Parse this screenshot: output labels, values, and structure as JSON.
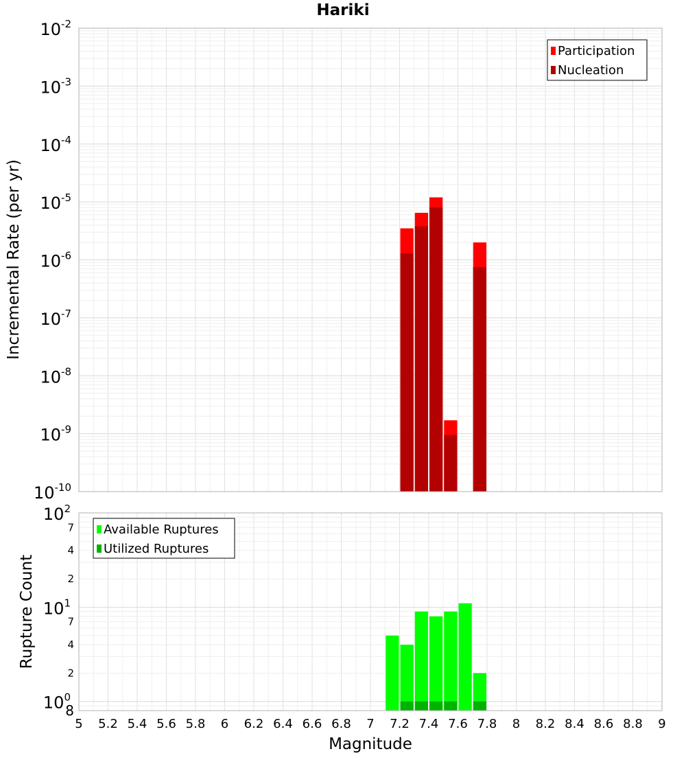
{
  "title": "Hariki",
  "chart_data": [
    {
      "type": "bar",
      "title": "Hariki",
      "xlabel": "Magnitude",
      "ylabel": "Incremental Rate (per yr)",
      "yscale": "log",
      "xlim": [
        5,
        9
      ],
      "ylim": [
        1e-10,
        0.01
      ],
      "x_ticks": [
        "5",
        "5.2",
        "5.4",
        "5.6",
        "5.8",
        "6",
        "6.2",
        "6.4",
        "6.6",
        "6.8",
        "7",
        "7.2",
        "7.4",
        "7.6",
        "7.8",
        "8",
        "8.2",
        "8.4",
        "8.6",
        "8.8",
        "9"
      ],
      "y_tick_exponents": [
        "-2",
        "-3",
        "-4",
        "-5",
        "-6",
        "-7",
        "-8",
        "-9",
        "-10"
      ],
      "y_tick_base": "10",
      "grid": true,
      "legend_position": "top-right",
      "bin_width": 0.1,
      "series": [
        {
          "name": "Participation",
          "color": "#ff0000",
          "x": [
            7.25,
            7.35,
            7.45,
            7.55,
            7.75
          ],
          "values": [
            3.5e-06,
            6.5e-06,
            1.2e-05,
            1.7e-09,
            2e-06
          ]
        },
        {
          "name": "Nucleation",
          "color": "#b30000",
          "x": [
            7.25,
            7.35,
            7.45,
            7.55,
            7.75
          ],
          "values": [
            1.3e-06,
            3.8e-06,
            8e-06,
            9.5e-10,
            7.5e-07
          ]
        }
      ]
    },
    {
      "type": "bar",
      "xlabel": "Magnitude",
      "ylabel": "Rupture Count",
      "yscale": "log",
      "xlim": [
        5,
        9
      ],
      "ylim": [
        0.8,
        100
      ],
      "y_major_ticks": [
        {
          "value": 100,
          "base": "10",
          "exp": "2"
        },
        {
          "value": 10,
          "base": "10",
          "exp": "1"
        },
        {
          "value": 1,
          "base": "10",
          "exp": "0"
        }
      ],
      "y_minor_ticks": [
        {
          "value": 70,
          "label": "7"
        },
        {
          "value": 40,
          "label": "4"
        },
        {
          "value": 20,
          "label": "2"
        },
        {
          "value": 7,
          "label": "7"
        },
        {
          "value": 4,
          "label": "4"
        },
        {
          "value": 2,
          "label": "2"
        },
        {
          "value": 0.8,
          "label": "8"
        }
      ],
      "grid": true,
      "legend_position": "top-left",
      "bin_width": 0.1,
      "series": [
        {
          "name": "Available Ruptures",
          "color": "#00ff00",
          "x": [
            7.15,
            7.25,
            7.35,
            7.45,
            7.55,
            7.65,
            7.75
          ],
          "values": [
            5,
            4,
            9,
            8,
            9,
            11,
            2
          ]
        },
        {
          "name": "Utilized Ruptures",
          "color": "#00b300",
          "x": [
            7.25,
            7.35,
            7.45,
            7.55,
            7.75
          ],
          "values": [
            1,
            1,
            1,
            1,
            1
          ]
        }
      ]
    }
  ]
}
